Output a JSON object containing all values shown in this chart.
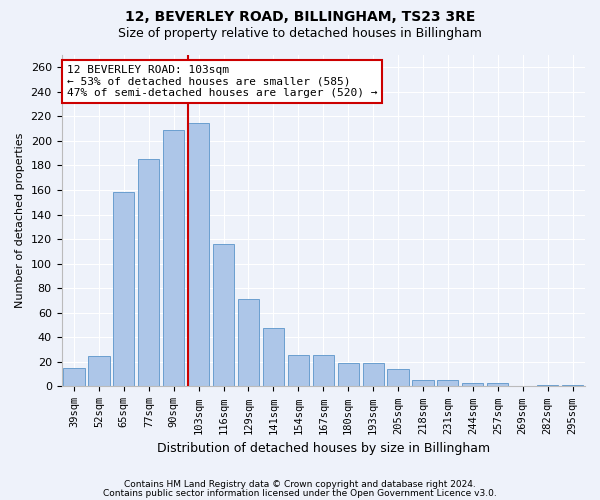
{
  "title1": "12, BEVERLEY ROAD, BILLINGHAM, TS23 3RE",
  "title2": "Size of property relative to detached houses in Billingham",
  "xlabel": "Distribution of detached houses by size in Billingham",
  "ylabel": "Number of detached properties",
  "categories": [
    "39sqm",
    "52sqm",
    "65sqm",
    "77sqm",
    "90sqm",
    "103sqm",
    "116sqm",
    "129sqm",
    "141sqm",
    "154sqm",
    "167sqm",
    "180sqm",
    "193sqm",
    "205sqm",
    "218sqm",
    "231sqm",
    "244sqm",
    "257sqm",
    "269sqm",
    "282sqm",
    "295sqm"
  ],
  "values": [
    15,
    25,
    158,
    185,
    209,
    215,
    116,
    71,
    48,
    26,
    26,
    19,
    19,
    14,
    5,
    5,
    3,
    3,
    0,
    1,
    1
  ],
  "bar_color": "#adc6e8",
  "bar_edge_color": "#6a9fd0",
  "highlight_index": 5,
  "vline_color": "#cc0000",
  "annotation_title": "12 BEVERLEY ROAD: 103sqm",
  "annotation_line1": "← 53% of detached houses are smaller (585)",
  "annotation_line2": "47% of semi-detached houses are larger (520) →",
  "annotation_box_facecolor": "#ffffff",
  "annotation_box_edgecolor": "#cc0000",
  "ylim": [
    0,
    270
  ],
  "yticks": [
    0,
    20,
    40,
    60,
    80,
    100,
    120,
    140,
    160,
    180,
    200,
    220,
    240,
    260
  ],
  "footnote1": "Contains HM Land Registry data © Crown copyright and database right 2024.",
  "footnote2": "Contains public sector information licensed under the Open Government Licence v3.0.",
  "bg_color": "#eef2fa",
  "plot_bg_color": "#eef2fa",
  "title1_fontsize": 10,
  "title2_fontsize": 9,
  "ylabel_fontsize": 8,
  "xlabel_fontsize": 9,
  "tick_fontsize": 8,
  "xtick_fontsize": 7.5,
  "footnote_fontsize": 6.5
}
